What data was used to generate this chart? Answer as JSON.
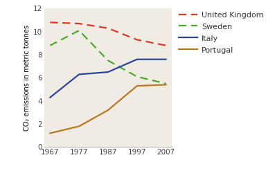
{
  "years": [
    1967,
    1977,
    1987,
    1997,
    2007
  ],
  "united_kingdom": [
    10.8,
    10.7,
    10.3,
    9.3,
    8.8
  ],
  "sweden": [
    8.8,
    10.1,
    7.5,
    6.1,
    5.5
  ],
  "italy": [
    4.3,
    6.3,
    6.5,
    7.6,
    7.6
  ],
  "portugal": [
    1.2,
    1.8,
    3.2,
    5.3,
    5.4
  ],
  "uk_color": "#d93a2a",
  "sweden_color": "#4ea830",
  "italy_color": "#2a42a0",
  "portugal_color": "#b87820",
  "ylabel": "CO₂ emissions in metric tonnes",
  "ylim": [
    0,
    12
  ],
  "yticks": [
    0,
    2,
    4,
    6,
    8,
    10,
    12
  ],
  "plot_bg_color": "#f0ebe3",
  "legend_bg_color": "#ffffff",
  "legend_labels": [
    "United Kingdom",
    "Sweden",
    "Italy",
    "Portugal"
  ],
  "axis_fontsize": 7.5,
  "legend_fontsize": 8.0,
  "linewidth": 1.6
}
